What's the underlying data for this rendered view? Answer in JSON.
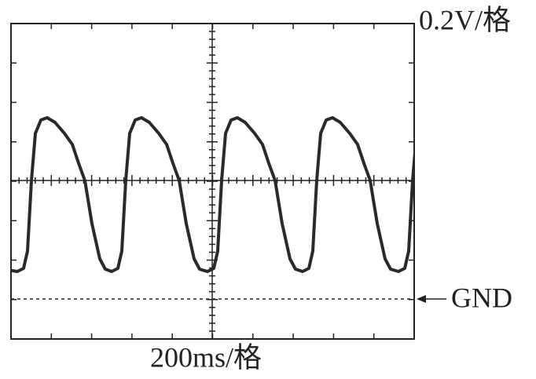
{
  "scale_labels": {
    "volts_per_div": "0.2V/格",
    "time_per_div": "200ms/格",
    "ground": "GND"
  }
}
